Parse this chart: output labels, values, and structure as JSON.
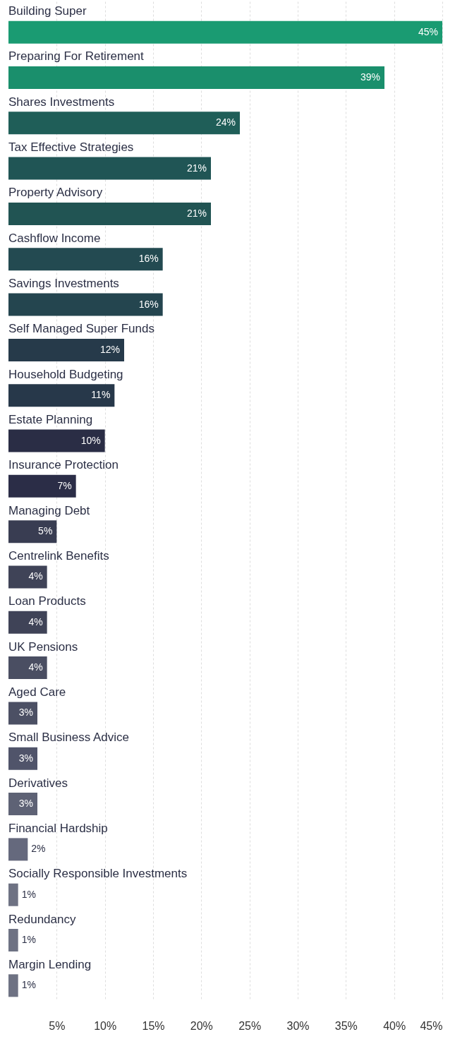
{
  "chart_data": {
    "type": "bar",
    "orientation": "horizontal",
    "categories": [
      "Building Super",
      "Preparing For Retirement",
      "Shares Investments",
      "Tax Effective Strategies",
      "Property Advisory",
      "Cashflow Income",
      "Savings Investments",
      "Self Managed Super Funds",
      "Household Budgeting",
      "Estate Planning",
      "Insurance Protection",
      "Managing Debt",
      "Centrelink Benefits",
      "Loan Products",
      "UK Pensions",
      "Aged Care",
      "Small Business Advice",
      "Derivatives",
      "Financial Hardship",
      "Socially Responsible Investments",
      "Redundancy",
      "Margin Lending"
    ],
    "values": [
      45,
      39,
      24,
      21,
      21,
      16,
      16,
      12,
      11,
      10,
      7,
      5,
      4,
      4,
      4,
      3,
      3,
      3,
      2,
      1,
      1,
      1
    ],
    "value_labels": [
      "45%",
      "39%",
      "24%",
      "21%",
      "21%",
      "16%",
      "16%",
      "12%",
      "11%",
      "10%",
      "7%",
      "5%",
      "4%",
      "4%",
      "4%",
      "3%",
      "3%",
      "3%",
      "2%",
      "1%",
      "1%",
      "1%"
    ],
    "colors": [
      "#1a9b72",
      "#1a8f6c",
      "#1f5e58",
      "#205555",
      "#215453",
      "#234a51",
      "#24454f",
      "#263a4a",
      "#27384a",
      "#2a2d45",
      "#2b2d47",
      "#393d52",
      "#3f4357",
      "#3f4357",
      "#4a4e62",
      "#4c5064",
      "#50546a",
      "#5e6275",
      "#65697d",
      "#6e7283",
      "#6e7283",
      "#6e7283"
    ],
    "xlim": [
      0,
      45
    ],
    "xticks": [
      {
        "value": 5,
        "label": "5%"
      },
      {
        "value": 10,
        "label": "10%"
      },
      {
        "value": 15,
        "label": "15%"
      },
      {
        "value": 20,
        "label": "20%"
      },
      {
        "value": 25,
        "label": "25%"
      },
      {
        "value": 30,
        "label": "30%"
      },
      {
        "value": 35,
        "label": "35%"
      },
      {
        "value": 40,
        "label": "40%"
      },
      {
        "value": 45,
        "label": "45%"
      }
    ],
    "grid": "x"
  }
}
